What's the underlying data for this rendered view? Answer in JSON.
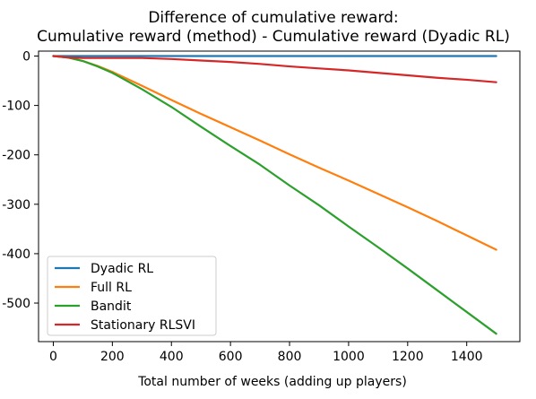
{
  "chart_data": {
    "type": "line",
    "title": [
      "Difference of cumulative reward:",
      "Cumulative reward (method) - Cumulative reward (Dyadic RL)"
    ],
    "xlabel": "Total number of weeks (adding up players)",
    "ylabel": "",
    "xlim": [
      -50,
      1580
    ],
    "ylim": [
      -578,
      10
    ],
    "xticks": [
      0,
      200,
      400,
      600,
      800,
      1000,
      1200,
      1400
    ],
    "yticks": [
      0,
      -100,
      -200,
      -300,
      -400,
      -500
    ],
    "ytick_labels": [
      "0",
      "-100",
      "-200",
      "-300",
      "-400",
      "-500"
    ],
    "grid": false,
    "legend_position": "lower-left",
    "series": [
      {
        "name": "Dyadic RL",
        "color": "#1f77b4",
        "x": [
          0,
          1500
        ],
        "y": [
          0,
          0
        ]
      },
      {
        "name": "Full RL",
        "color": "#ff7f0e",
        "x": [
          0,
          50,
          100,
          150,
          200,
          300,
          400,
          500,
          600,
          700,
          800,
          900,
          1000,
          1100,
          1200,
          1300,
          1400,
          1500
        ],
        "y": [
          0,
          -3,
          -10,
          -20,
          -32,
          -60,
          -89,
          -117,
          -144,
          -171,
          -199,
          -226,
          -252,
          -279,
          -306,
          -334,
          -363,
          -392
        ]
      },
      {
        "name": "Bandit",
        "color": "#2ca02c",
        "x": [
          0,
          50,
          100,
          150,
          200,
          300,
          400,
          500,
          600,
          700,
          800,
          900,
          1000,
          1100,
          1200,
          1300,
          1400,
          1500
        ],
        "y": [
          0,
          -3,
          -10,
          -21,
          -34,
          -67,
          -103,
          -143,
          -182,
          -220,
          -262,
          -302,
          -345,
          -387,
          -430,
          -474,
          -518,
          -562
        ]
      },
      {
        "name": "Stationary RLSVI",
        "color": "#d62728",
        "x": [
          0,
          50,
          100,
          200,
          300,
          400,
          500,
          600,
          700,
          800,
          900,
          1000,
          1100,
          1200,
          1300,
          1400,
          1500
        ],
        "y": [
          0,
          -3,
          -4,
          -4,
          -4,
          -6,
          -9,
          -12,
          -16,
          -21,
          -25,
          -29,
          -34,
          -39,
          -44,
          -48,
          -53
        ]
      }
    ]
  }
}
